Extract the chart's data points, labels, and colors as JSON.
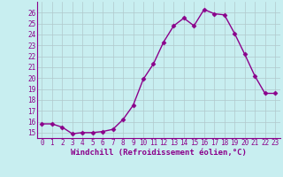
{
  "x": [
    0,
    1,
    2,
    3,
    4,
    5,
    6,
    7,
    8,
    9,
    10,
    11,
    12,
    13,
    14,
    15,
    16,
    17,
    18,
    19,
    20,
    21,
    22,
    23
  ],
  "y": [
    15.8,
    15.8,
    15.5,
    14.9,
    15.0,
    15.0,
    15.1,
    15.3,
    16.2,
    17.5,
    19.9,
    21.3,
    23.3,
    24.8,
    25.5,
    24.8,
    26.3,
    25.9,
    25.8,
    24.1,
    22.2,
    20.2,
    18.6,
    18.6
  ],
  "line_color": "#8B008B",
  "marker": "D",
  "marker_size": 2.5,
  "line_width": 1.0,
  "bg_color": "#c8eef0",
  "grid_color": "#b0c8cc",
  "xlabel": "Windchill (Refroidissement éolien,°C)",
  "xlabel_color": "#8B008B",
  "xlabel_fontsize": 6.5,
  "tick_color": "#8B008B",
  "tick_fontsize": 5.5,
  "ylim": [
    14.5,
    27.0
  ],
  "xlim": [
    -0.5,
    23.5
  ],
  "yticks": [
    15,
    16,
    17,
    18,
    19,
    20,
    21,
    22,
    23,
    24,
    25,
    26
  ],
  "xticks": [
    0,
    1,
    2,
    3,
    4,
    5,
    6,
    7,
    8,
    9,
    10,
    11,
    12,
    13,
    14,
    15,
    16,
    17,
    18,
    19,
    20,
    21,
    22,
    23
  ]
}
